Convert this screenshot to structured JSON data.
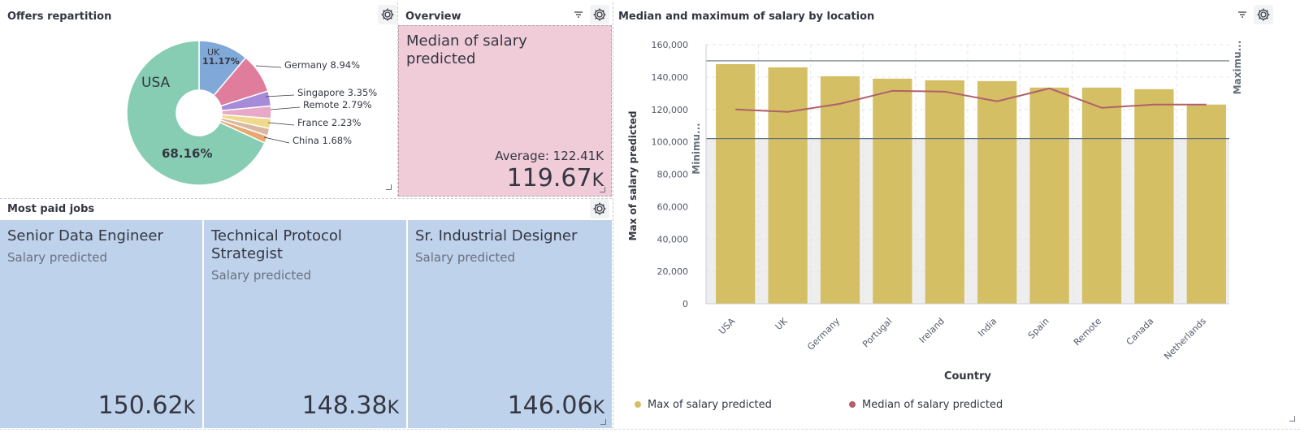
{
  "pie_panel": {
    "title": "Offers repartition",
    "center_label": "USA",
    "center_pct": "68.16%",
    "slices": [
      {
        "name": "USA",
        "pct": 68.16,
        "label": "68.16%",
        "color": "#86cdb3"
      },
      {
        "name": "UK",
        "pct": 11.17,
        "label": "11.17%",
        "color": "#80a8d8"
      },
      {
        "name": "Germany",
        "pct": 8.94,
        "label": "Germany  8.94%",
        "color": "#e07d9c"
      },
      {
        "name": "Singapore",
        "pct": 3.35,
        "label": "Singapore  3.35%",
        "color": "#a68cd8"
      },
      {
        "name": "Remote",
        "pct": 2.79,
        "label": "Remote  2.79%",
        "color": "#e8a9c8"
      },
      {
        "name": "France",
        "pct": 2.23,
        "label": "France  2.23%",
        "color": "#f0d98a"
      },
      {
        "name": "China",
        "pct": 1.68,
        "label": "China  1.68%",
        "color": "#d9b7a0"
      },
      {
        "name": "Other",
        "pct": 1.68,
        "label": "",
        "color": "#e8a870"
      }
    ]
  },
  "overview": {
    "title": "Overview",
    "metric_title": "Median of salary predicted",
    "average_label": "Average: 122.41K",
    "value": "119.67",
    "unit": "K",
    "bg_color": "#f0ccd8"
  },
  "jobs_panel": {
    "title": "Most paid jobs",
    "tiles": [
      {
        "title": "Senior Data Engineer",
        "subtitle": "Salary predicted",
        "value": "150.62",
        "unit": "K"
      },
      {
        "title": "Technical Protocol Strategist",
        "subtitle": "Salary predicted",
        "value": "148.38",
        "unit": "K"
      },
      {
        "title": "Sr. Industrial Designer",
        "subtitle": "Salary predicted",
        "value": "146.06",
        "unit": "K"
      }
    ]
  },
  "bar_panel": {
    "title": "Median and maximum of salary by location"
  },
  "chart_data": {
    "type": "bar",
    "title": "Median and maximum of salary by location",
    "xlabel": "Country",
    "ylabel": "Max of salary predicted",
    "right_axis_label": "Maximu...",
    "inner_axis_label": "Minimu...",
    "categories": [
      "USA",
      "UK",
      "Germany",
      "Portugal",
      "Ireland",
      "India",
      "Spain",
      "Remote",
      "Canada",
      "Netherlands"
    ],
    "yticks": [
      "0",
      "20,000",
      "40,000",
      "60,000",
      "80,000",
      "100,000",
      "120,000",
      "140,000",
      "160,000"
    ],
    "ylim": [
      0,
      160000
    ],
    "ref_lines": [
      150000,
      102000
    ],
    "shaded_band": [
      0,
      102000
    ],
    "series": [
      {
        "name": "Max of salary predicted",
        "type": "bar",
        "color": "#d4bf65",
        "values": [
          148000,
          146000,
          140500,
          139000,
          138000,
          137500,
          133500,
          133500,
          132500,
          123000
        ]
      },
      {
        "name": "Median of salary predicted",
        "type": "line",
        "color": "#b0606a",
        "values": [
          120000,
          118500,
          123500,
          131500,
          131000,
          125000,
          133000,
          121000,
          123000,
          123000
        ]
      }
    ],
    "legend_position": "bottom-left",
    "grid": true
  }
}
